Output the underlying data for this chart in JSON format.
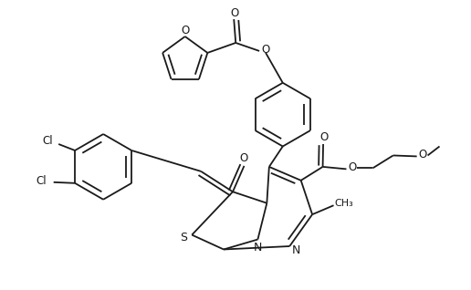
{
  "bg_color": "#ffffff",
  "line_color": "#1a1a1a",
  "line_width": 1.3,
  "figsize": [
    5.16,
    3.18
  ],
  "dpi": 100,
  "xlim": [
    0,
    10.32
  ],
  "ylim": [
    0,
    6.36
  ]
}
